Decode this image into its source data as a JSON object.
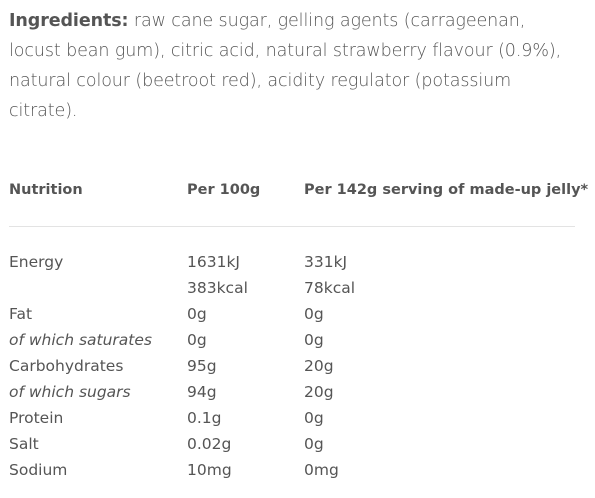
{
  "ingredients": {
    "label": "Ingredients:",
    "text": " raw cane sugar, gelling agents (carrageenan, locust bean gum), citric acid, natural strawberry flavour (0.9%), natural colour (beetroot red), acidity regulator (potassium citrate)."
  },
  "nutrition_table": {
    "headers": [
      "Nutrition",
      "Per 100g",
      "Per 142g serving of made-up jelly*"
    ],
    "rows": [
      {
        "name": "Energy",
        "italic": false,
        "per100": "1631kJ",
        "perServing": "331kJ"
      },
      {
        "name": "",
        "italic": false,
        "per100": "383kcal",
        "perServing": "78kcal"
      },
      {
        "name": "Fat",
        "italic": false,
        "per100": "0g",
        "perServing": "0g"
      },
      {
        "name": "of which saturates",
        "italic": true,
        "per100": "0g",
        "perServing": "0g"
      },
      {
        "name": "Carbohydrates",
        "italic": false,
        "per100": "95g",
        "perServing": "20g"
      },
      {
        "name": "of which sugars",
        "italic": true,
        "per100": "94g",
        "perServing": "20g"
      },
      {
        "name": "Protein",
        "italic": false,
        "per100": "0.1g",
        "perServing": "0g"
      },
      {
        "name": "Salt",
        "italic": false,
        "per100": "0.02g",
        "perServing": "0g"
      },
      {
        "name": "Sodium",
        "italic": false,
        "per100": "10mg",
        "perServing": "0mg"
      }
    ]
  }
}
